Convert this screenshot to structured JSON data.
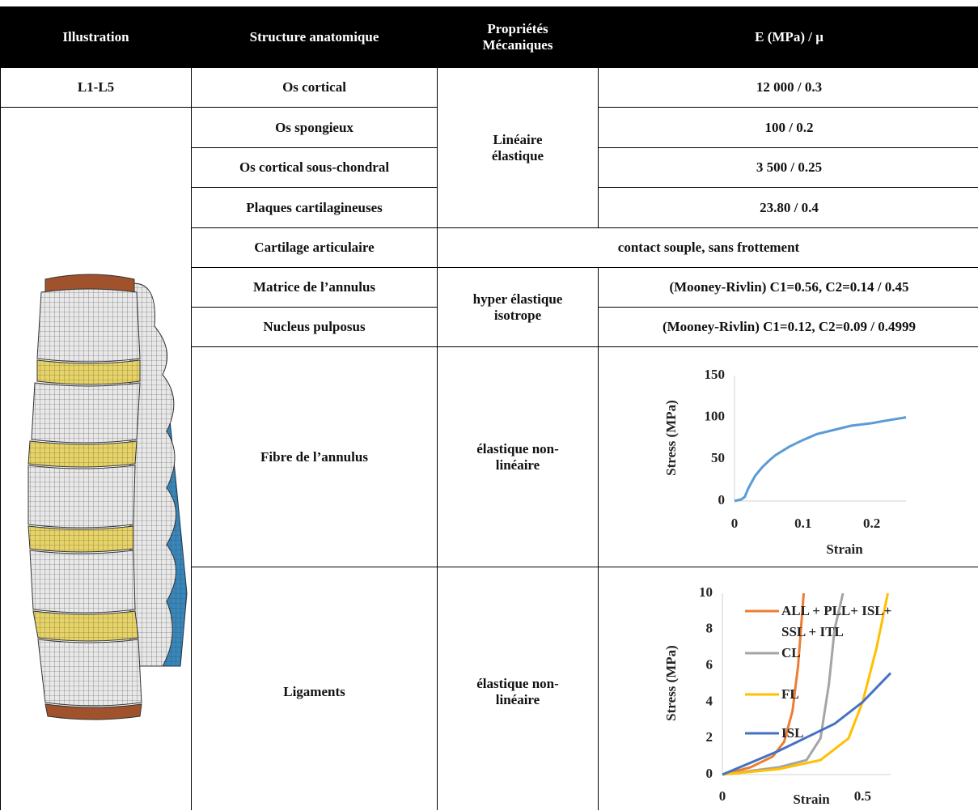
{
  "table": {
    "header": [
      "Illustration",
      "Structure anatomique",
      "Propriétés Mécaniques",
      "E (MPa) / μ"
    ],
    "illustration_label": "L1-L5",
    "rows": [
      {
        "structure": "Os cortical",
        "property": "Linéaire élastique",
        "value": "12 000 / 0.3"
      },
      {
        "structure": "Os spongieux",
        "value": "100 / 0.2"
      },
      {
        "structure": "Os cortical sous-chondral",
        "value": "3 500 / 0.25"
      },
      {
        "structure": "Plaques cartilagineuses",
        "value": "23.80 / 0.4"
      },
      {
        "structure": "Cartilage articulaire",
        "value": "contact souple, sans frottement"
      },
      {
        "structure": "Matrice de l’annulus",
        "property": "hyper élastique isotrope",
        "value": "(Mooney-Rivlin) C1=0.56, C2=0.14 / 0.45"
      },
      {
        "structure": "Nucleus pulposus",
        "value": "(Mooney-Rivlin) C1=0.12, C2=0.09 / 0.4999"
      },
      {
        "structure": "Fibre de l’annulus",
        "property": "élastique non-linéaire"
      },
      {
        "structure": "Ligaments",
        "property": "élastique non-linéaire"
      }
    ]
  },
  "chart_data": [
    {
      "type": "line",
      "xlabel": "Strain",
      "ylabel": "Stress (MPa)",
      "x": [
        0,
        0.01,
        0.015,
        0.02,
        0.03,
        0.04,
        0.05,
        0.06,
        0.08,
        0.1,
        0.12,
        0.15,
        0.17,
        0.2,
        0.22,
        0.25
      ],
      "values": [
        0,
        2,
        5,
        15,
        30,
        40,
        48,
        55,
        65,
        73,
        80,
        86,
        90,
        93,
        96,
        100
      ],
      "color": "#5b9bd5",
      "xlim": [
        0,
        0.25
      ],
      "xticks": [
        0,
        0.1,
        0.2
      ],
      "ylim": [
        0,
        150
      ],
      "yticks": [
        0,
        50,
        100,
        150
      ]
    },
    {
      "type": "line",
      "xlabel": "Strain",
      "ylabel": "Stress (MPa)",
      "series": [
        {
          "name": "ALL + PLL+ ISL+ SSL + ITL",
          "color": "#ed7d31",
          "x": [
            0,
            0.1,
            0.18,
            0.22,
            0.25,
            0.27,
            0.29
          ],
          "values": [
            0,
            0.4,
            1,
            1.8,
            3.5,
            6,
            10
          ]
        },
        {
          "name": "CL",
          "color": "#a5a5a5",
          "x": [
            0,
            0.2,
            0.3,
            0.35,
            0.38,
            0.4,
            0.43
          ],
          "values": [
            0,
            0.4,
            0.8,
            2,
            5,
            8,
            10
          ]
        },
        {
          "name": "FL",
          "color": "#ffc000",
          "x": [
            0,
            0.2,
            0.35,
            0.45,
            0.5,
            0.55,
            0.59
          ],
          "values": [
            0,
            0.3,
            0.8,
            2,
            4,
            7,
            10
          ]
        },
        {
          "name": "ISL",
          "color": "#4472c4",
          "x": [
            0,
            0.2,
            0.4,
            0.5,
            0.6
          ],
          "values": [
            0,
            1.3,
            2.8,
            4,
            5.6
          ]
        }
      ],
      "xlim": [
        0,
        0.6
      ],
      "xticks": [
        0,
        0.5
      ],
      "ylim": [
        0,
        10
      ],
      "yticks": [
        0,
        2,
        4,
        6,
        8,
        10
      ]
    }
  ]
}
